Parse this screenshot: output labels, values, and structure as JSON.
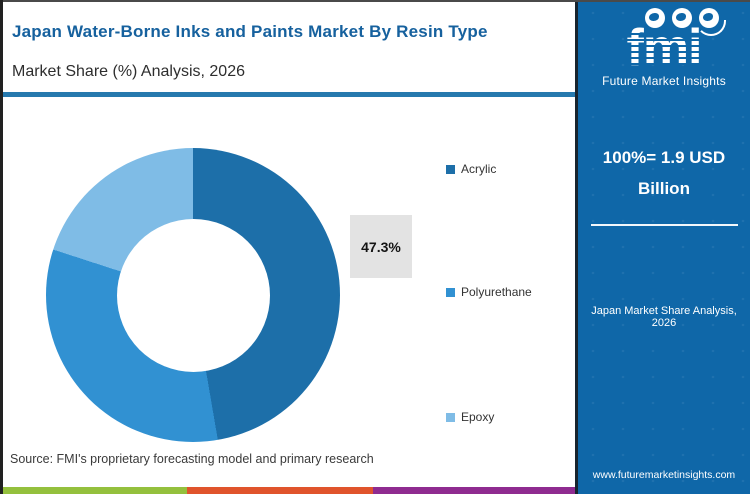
{
  "header": {
    "title": "Japan Water-Borne Inks and Paints Market By Resin Type",
    "subtitle": "Market Share (%) Analysis, 2026",
    "title_color": "#16619e",
    "underline_color": "#2679ae"
  },
  "chart_data": {
    "type": "pie",
    "subtype": "donut",
    "title": "Japan Water-Borne Inks and Paints Market By Resin Type",
    "subtitle": "Market Share (%) Analysis, 2026",
    "categories": [
      "Acrylic",
      "Polyurethane",
      "Epoxy"
    ],
    "values": [
      47.3,
      32.7,
      20.0
    ],
    "colors": [
      "#1d6fa9",
      "#3191d2",
      "#7fbce6"
    ],
    "start_angle_deg": 0,
    "direction": "clockwise",
    "hole_ratio": 0.52,
    "legend_position": "right",
    "data_labels": [
      {
        "series": "Acrylic",
        "text": "47.3%"
      }
    ]
  },
  "legend": {
    "items": [
      {
        "label": "Acrylic",
        "color": "#1d6fa9"
      },
      {
        "label": "Polyurethane",
        "color": "#3191d2"
      },
      {
        "label": "Epoxy",
        "color": "#7fbce6"
      }
    ]
  },
  "callout": {
    "text": "47.3%"
  },
  "sidebar": {
    "background": "#0f67a8",
    "logo": {
      "brand": "fmi",
      "tagline": "Future Market Insights"
    },
    "headline": "100%= 1.9 USD Billion",
    "caption": "Japan Market Share Analysis, 2026",
    "website": "www.futuremarketinsights.com"
  },
  "footer": {
    "source": "Source: FMI's proprietary forecasting model and primary research",
    "bar_segments": [
      {
        "color": "#94c03d",
        "width_pct": 32.4
      },
      {
        "color": "#e0542c",
        "width_pct": 32.1
      },
      {
        "color": "#8f2b90",
        "width_pct": 35.5
      }
    ]
  }
}
